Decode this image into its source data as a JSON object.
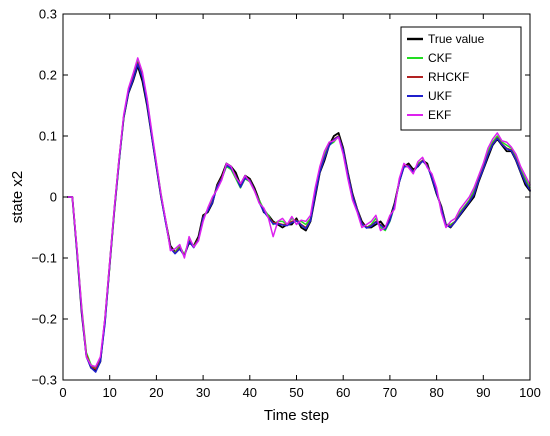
{
  "chart_data": {
    "type": "line",
    "title": "",
    "xlabel": "Time step",
    "ylabel": "state x2",
    "xlim": [
      0,
      100
    ],
    "ylim": [
      -0.3,
      0.3
    ],
    "xticks": [
      0,
      10,
      20,
      30,
      40,
      50,
      60,
      70,
      80,
      90,
      100
    ],
    "yticks": [
      -0.3,
      -0.2,
      -0.1,
      0,
      0.1,
      0.2,
      0.3
    ],
    "xtick_labels": [
      "0",
      "10",
      "20",
      "30",
      "40",
      "50",
      "60",
      "70",
      "80",
      "90",
      "100"
    ],
    "ytick_labels": [
      "−0.3",
      "−0.2",
      "−0.1",
      "0",
      "0.1",
      "0.2",
      "0.3"
    ],
    "grid": false,
    "legend_position": "top-right",
    "x": [
      1,
      2,
      3,
      4,
      5,
      6,
      7,
      8,
      9,
      10,
      11,
      12,
      13,
      14,
      15,
      16,
      17,
      18,
      19,
      20,
      21,
      22,
      23,
      24,
      25,
      26,
      27,
      28,
      29,
      30,
      31,
      32,
      33,
      34,
      35,
      36,
      37,
      38,
      39,
      40,
      41,
      42,
      43,
      44,
      45,
      46,
      47,
      48,
      49,
      50,
      51,
      52,
      53,
      54,
      55,
      56,
      57,
      58,
      59,
      60,
      61,
      62,
      63,
      64,
      65,
      66,
      67,
      68,
      69,
      70,
      71,
      72,
      73,
      74,
      75,
      76,
      77,
      78,
      79,
      80,
      81,
      82,
      83,
      84,
      85,
      86,
      87,
      88,
      89,
      90,
      91,
      92,
      93,
      94,
      95,
      96,
      97,
      98,
      99,
      100
    ],
    "series": [
      {
        "name": "True value",
        "color": "#000000",
        "values": [
          0.0,
          0.0,
          -0.09,
          -0.19,
          -0.26,
          -0.28,
          -0.285,
          -0.27,
          -0.2,
          -0.11,
          -0.02,
          0.06,
          0.13,
          0.17,
          0.19,
          0.215,
          0.19,
          0.15,
          0.1,
          0.05,
          0.0,
          -0.04,
          -0.08,
          -0.09,
          -0.085,
          -0.095,
          -0.075,
          -0.08,
          -0.065,
          -0.03,
          -0.025,
          -0.01,
          0.02,
          0.035,
          0.055,
          0.05,
          0.04,
          0.02,
          0.035,
          0.03,
          0.015,
          -0.005,
          -0.025,
          -0.03,
          -0.04,
          -0.045,
          -0.05,
          -0.045,
          -0.045,
          -0.035,
          -0.05,
          -0.055,
          -0.04,
          0.0,
          0.04,
          0.06,
          0.085,
          0.1,
          0.105,
          0.08,
          0.04,
          0.005,
          -0.02,
          -0.04,
          -0.05,
          -0.05,
          -0.045,
          -0.04,
          -0.05,
          -0.035,
          -0.01,
          0.025,
          0.05,
          0.055,
          0.045,
          0.05,
          0.06,
          0.055,
          0.03,
          0.005,
          -0.015,
          -0.045,
          -0.05,
          -0.04,
          -0.03,
          -0.02,
          -0.01,
          0.0,
          0.025,
          0.045,
          0.065,
          0.085,
          0.095,
          0.085,
          0.075,
          0.075,
          0.06,
          0.04,
          0.02,
          0.01
        ]
      },
      {
        "name": "CKF",
        "color": "#22dd22",
        "values": [
          0.0,
          0.0,
          -0.085,
          -0.18,
          -0.255,
          -0.275,
          -0.28,
          -0.265,
          -0.205,
          -0.115,
          -0.025,
          0.055,
          0.13,
          0.175,
          0.2,
          0.225,
          0.2,
          0.16,
          0.105,
          0.055,
          0.005,
          -0.04,
          -0.085,
          -0.09,
          -0.08,
          -0.095,
          -0.07,
          -0.08,
          -0.07,
          -0.035,
          -0.02,
          -0.005,
          0.015,
          0.03,
          0.05,
          0.045,
          0.03,
          0.015,
          0.03,
          0.025,
          0.01,
          -0.005,
          -0.02,
          -0.03,
          -0.045,
          -0.04,
          -0.04,
          -0.045,
          -0.035,
          -0.04,
          -0.04,
          -0.045,
          -0.035,
          0.01,
          0.045,
          0.07,
          0.085,
          0.09,
          0.1,
          0.075,
          0.035,
          0.0,
          -0.02,
          -0.045,
          -0.05,
          -0.045,
          -0.035,
          -0.05,
          -0.055,
          -0.04,
          -0.015,
          0.025,
          0.05,
          0.05,
          0.04,
          0.055,
          0.06,
          0.05,
          0.035,
          0.01,
          -0.02,
          -0.045,
          -0.045,
          -0.04,
          -0.025,
          -0.015,
          -0.005,
          0.01,
          0.03,
          0.05,
          0.075,
          0.09,
          0.1,
          0.09,
          0.085,
          0.08,
          0.065,
          0.045,
          0.03,
          0.015
        ]
      },
      {
        "name": "RHCKF",
        "color": "#b22222",
        "values": [
          0.0,
          0.0,
          -0.088,
          -0.185,
          -0.258,
          -0.278,
          -0.282,
          -0.268,
          -0.203,
          -0.113,
          -0.023,
          0.058,
          0.132,
          0.172,
          0.195,
          0.22,
          0.198,
          0.155,
          0.102,
          0.052,
          0.002,
          -0.042,
          -0.082,
          -0.092,
          -0.083,
          -0.096,
          -0.072,
          -0.082,
          -0.068,
          -0.033,
          -0.022,
          -0.008,
          0.018,
          0.032,
          0.053,
          0.048,
          0.035,
          0.017,
          0.032,
          0.028,
          0.012,
          -0.008,
          -0.023,
          -0.033,
          -0.042,
          -0.043,
          -0.045,
          -0.045,
          -0.04,
          -0.038,
          -0.045,
          -0.05,
          -0.038,
          0.005,
          0.042,
          0.065,
          0.085,
          0.095,
          0.1,
          0.078,
          0.038,
          0.003,
          -0.02,
          -0.043,
          -0.05,
          -0.047,
          -0.04,
          -0.045,
          -0.052,
          -0.038,
          -0.012,
          0.025,
          0.05,
          0.052,
          0.042,
          0.052,
          0.06,
          0.052,
          0.032,
          0.008,
          -0.017,
          -0.045,
          -0.048,
          -0.04,
          -0.028,
          -0.017,
          -0.007,
          0.005,
          0.028,
          0.047,
          0.07,
          0.087,
          0.097,
          0.087,
          0.08,
          0.077,
          0.062,
          0.042,
          0.025,
          0.012
        ]
      },
      {
        "name": "UKF",
        "color": "#1f1fcc",
        "values": [
          0.0,
          0.0,
          -0.09,
          -0.188,
          -0.262,
          -0.28,
          -0.287,
          -0.27,
          -0.207,
          -0.112,
          -0.022,
          0.057,
          0.131,
          0.171,
          0.192,
          0.218,
          0.196,
          0.153,
          0.1,
          0.05,
          0.0,
          -0.043,
          -0.084,
          -0.093,
          -0.085,
          -0.097,
          -0.073,
          -0.083,
          -0.07,
          -0.034,
          -0.023,
          -0.009,
          0.017,
          0.03,
          0.052,
          0.047,
          0.034,
          0.016,
          0.031,
          0.027,
          0.011,
          -0.009,
          -0.024,
          -0.034,
          -0.044,
          -0.044,
          -0.046,
          -0.047,
          -0.042,
          -0.039,
          -0.046,
          -0.052,
          -0.039,
          0.004,
          0.041,
          0.064,
          0.084,
          0.094,
          0.099,
          0.077,
          0.037,
          0.002,
          -0.021,
          -0.044,
          -0.051,
          -0.048,
          -0.041,
          -0.046,
          -0.053,
          -0.039,
          -0.013,
          0.024,
          0.049,
          0.051,
          0.041,
          0.051,
          0.059,
          0.051,
          0.031,
          0.007,
          -0.018,
          -0.046,
          -0.049,
          -0.041,
          -0.029,
          -0.018,
          -0.008,
          0.004,
          0.027,
          0.046,
          0.069,
          0.086,
          0.096,
          0.086,
          0.079,
          0.076,
          0.061,
          0.041,
          0.024,
          0.011
        ]
      },
      {
        "name": "EKF",
        "color": "#dd22ee",
        "values": [
          0.0,
          0.0,
          -0.085,
          -0.182,
          -0.262,
          -0.276,
          -0.278,
          -0.262,
          -0.198,
          -0.108,
          -0.018,
          0.062,
          0.135,
          0.178,
          0.202,
          0.228,
          0.205,
          0.162,
          0.108,
          0.056,
          0.004,
          -0.038,
          -0.088,
          -0.085,
          -0.078,
          -0.1,
          -0.065,
          -0.082,
          -0.072,
          -0.04,
          -0.018,
          0.0,
          0.012,
          0.028,
          0.055,
          0.05,
          0.032,
          0.022,
          0.035,
          0.025,
          0.01,
          -0.01,
          -0.018,
          -0.035,
          -0.065,
          -0.04,
          -0.035,
          -0.045,
          -0.032,
          -0.045,
          -0.038,
          -0.04,
          -0.03,
          0.015,
          0.05,
          0.075,
          0.09,
          0.092,
          0.098,
          0.07,
          0.03,
          -0.005,
          -0.025,
          -0.05,
          -0.045,
          -0.04,
          -0.03,
          -0.055,
          -0.05,
          -0.03,
          -0.02,
          0.03,
          0.055,
          0.048,
          0.038,
          0.058,
          0.065,
          0.048,
          0.038,
          0.015,
          -0.025,
          -0.05,
          -0.04,
          -0.035,
          -0.02,
          -0.01,
          0.0,
          0.015,
          0.035,
          0.055,
          0.08,
          0.095,
          0.105,
          0.092,
          0.09,
          0.082,
          0.07,
          0.05,
          0.035,
          0.02
        ]
      }
    ]
  }
}
